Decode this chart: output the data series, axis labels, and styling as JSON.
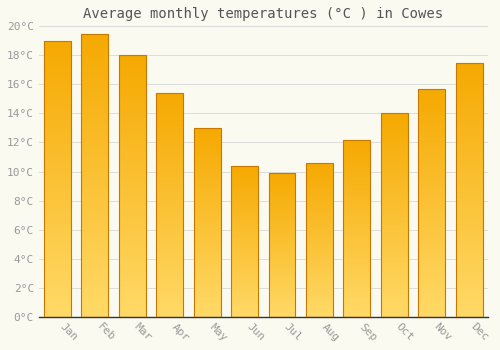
{
  "title": "Average monthly temperatures (°C ) in Cowes",
  "months": [
    "Jan",
    "Feb",
    "Mar",
    "Apr",
    "May",
    "Jun",
    "Jul",
    "Aug",
    "Sep",
    "Oct",
    "Nov",
    "Dec"
  ],
  "values": [
    19.0,
    19.5,
    18.0,
    15.4,
    13.0,
    10.4,
    9.9,
    10.6,
    12.2,
    14.0,
    15.7,
    17.5
  ],
  "bar_color_top": "#F5A800",
  "bar_color_bottom": "#FFD966",
  "bar_edge_color": "#C87800",
  "background_color": "#FAFAF0",
  "grid_color": "#D8D8D8",
  "text_color": "#999999",
  "title_color": "#555555",
  "ylim": [
    0,
    20
  ],
  "ytick_interval": 2,
  "title_fontsize": 10,
  "tick_fontsize": 8,
  "fig_width": 5.0,
  "fig_height": 3.5,
  "dpi": 100
}
